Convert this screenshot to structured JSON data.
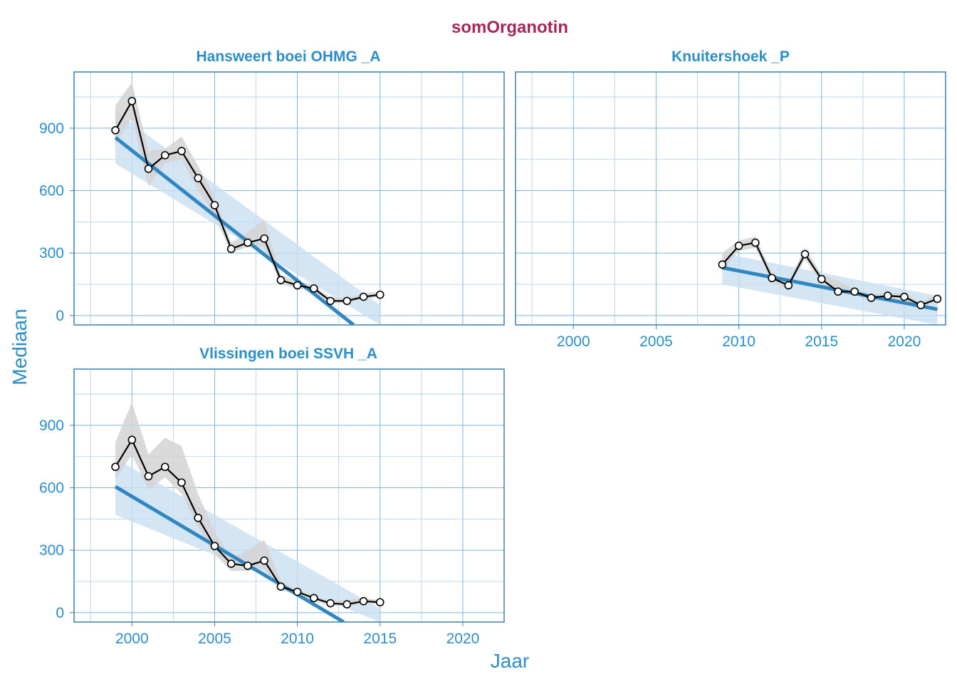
{
  "chart_data": {
    "type": "line",
    "title": "somOrganotin",
    "xlabel": "Jaar",
    "ylabel": "Mediaan",
    "xlim": [
      1996.5,
      2022.5
    ],
    "ylim": [
      -45,
      1170
    ],
    "x_ticks": [
      2000,
      2005,
      2010,
      2015,
      2020
    ],
    "y_ticks": [
      0,
      300,
      600,
      900
    ],
    "colors": {
      "title": "#a6275a",
      "axis_text": "#2c8ec9",
      "trend_line": "#2f86c1",
      "trend_band": "#c9dff1",
      "observed_line": "#000000",
      "observed_band": "#d4d4d4"
    },
    "panels": [
      {
        "name": "Hansweert boei OHMG _A",
        "x": [
          1999,
          2000,
          2001,
          2002,
          2003,
          2004,
          2005,
          2006,
          2007,
          2008,
          2009,
          2010,
          2011,
          2012,
          2013,
          2014,
          2015
        ],
        "median": [
          890,
          1030,
          705,
          770,
          790,
          660,
          530,
          320,
          350,
          370,
          170,
          145,
          130,
          70,
          70,
          90,
          100
        ],
        "band_low": [
          820,
          950,
          620,
          730,
          750,
          600,
          480,
          300,
          330,
          330,
          150,
          130,
          115,
          60,
          60,
          80,
          90
        ],
        "band_high": [
          1010,
          1120,
          790,
          800,
          860,
          720,
          570,
          350,
          400,
          460,
          195,
          165,
          145,
          85,
          85,
          105,
          115
        ],
        "trend": {
          "x": [
            1999,
            2013.4
          ],
          "y": [
            855,
            -45
          ]
        },
        "trend_band": {
          "x": [
            1999,
            2015
          ],
          "low": [
            730,
            -45
          ],
          "high": [
            980,
            50
          ]
        }
      },
      {
        "name": "Knuitershoek _P",
        "x": [
          2009,
          2010,
          2011,
          2012,
          2013,
          2014,
          2015,
          2016,
          2017,
          2018,
          2019,
          2020,
          2021,
          2022
        ],
        "median": [
          245,
          335,
          350,
          180,
          145,
          295,
          175,
          115,
          115,
          85,
          95,
          90,
          50,
          80
        ],
        "band_low": [
          215,
          310,
          325,
          160,
          130,
          270,
          155,
          100,
          100,
          70,
          80,
          75,
          40,
          65
        ],
        "band_high": [
          300,
          360,
          380,
          205,
          165,
          325,
          200,
          165,
          130,
          100,
          110,
          105,
          65,
          100
        ],
        "trend": {
          "x": [
            2009,
            2022
          ],
          "y": [
            230,
            30
          ]
        },
        "trend_band": {
          "x": [
            2009,
            2022
          ],
          "low": [
            150,
            -45
          ],
          "high": [
            300,
            95
          ]
        }
      },
      {
        "name": "Vlissingen boei SSVH _A",
        "x": [
          1999,
          2000,
          2001,
          2002,
          2003,
          2004,
          2005,
          2006,
          2007,
          2008,
          2009,
          2010,
          2011,
          2012,
          2013,
          2014,
          2015
        ],
        "median": [
          700,
          830,
          655,
          700,
          625,
          455,
          320,
          235,
          225,
          250,
          125,
          100,
          70,
          45,
          40,
          55,
          50
        ],
        "band_low": [
          640,
          760,
          590,
          650,
          570,
          410,
          280,
          200,
          200,
          210,
          110,
          85,
          55,
          35,
          30,
          45,
          40
        ],
        "band_high": [
          820,
          1010,
          760,
          840,
          800,
          570,
          390,
          260,
          300,
          350,
          150,
          115,
          85,
          55,
          60,
          70,
          60
        ],
        "trend": {
          "x": [
            1999,
            2012.8
          ],
          "y": [
            605,
            -45
          ]
        },
        "trend_band": {
          "x": [
            1999,
            2015
          ],
          "low": [
            470,
            -45
          ],
          "high": [
            740,
            20
          ]
        }
      }
    ]
  }
}
